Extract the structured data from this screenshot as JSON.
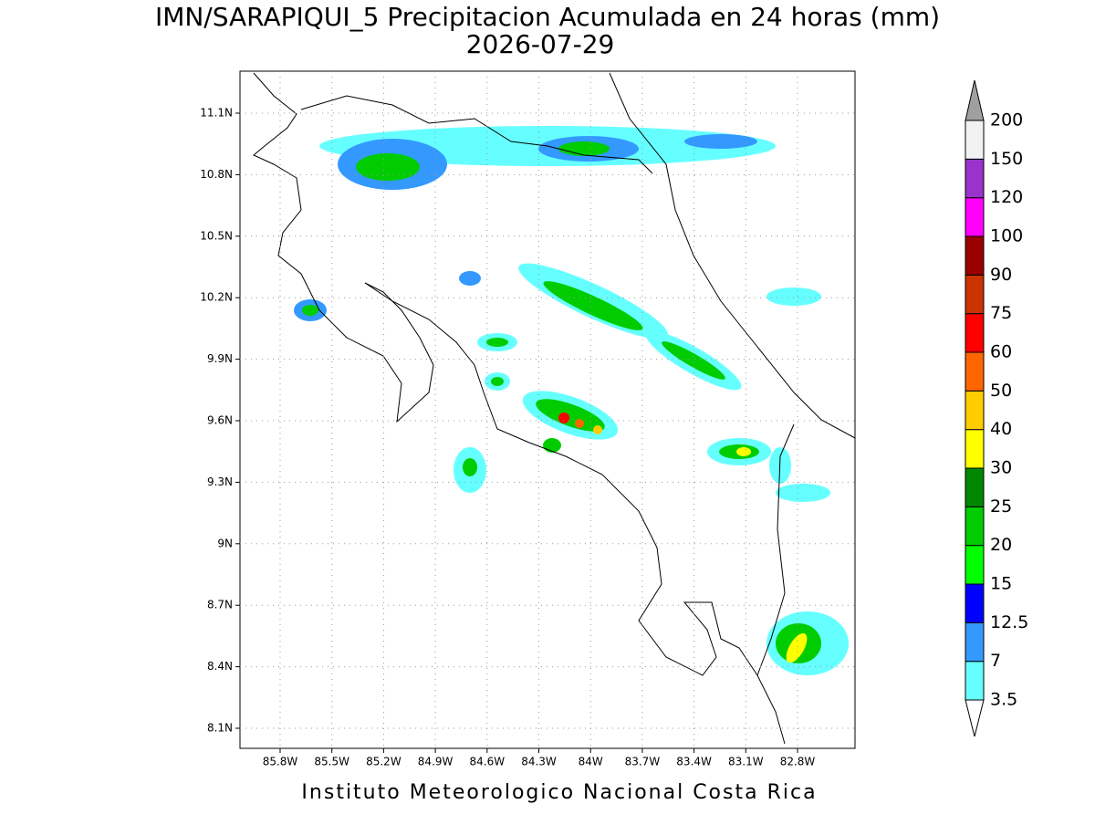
{
  "title": "IMN/SARAPIQUI_5 Precipitacion Acumulada en 24 horas (mm)",
  "subtitle": "2026-07-29",
  "footer": "Instituto Meteorologico Nacional Costa Rica",
  "lon_ticks": [
    {
      "value": -85.8,
      "label": "85.8W"
    },
    {
      "value": -85.5,
      "label": "85.5W"
    },
    {
      "value": -85.2,
      "label": "85.2W"
    },
    {
      "value": -84.9,
      "label": "84.9W"
    },
    {
      "value": -84.6,
      "label": "84.6W"
    },
    {
      "value": -84.3,
      "label": "84.3W"
    },
    {
      "value": -84,
      "label": "84W"
    },
    {
      "value": -83.7,
      "label": "83.7W"
    },
    {
      "value": -83.4,
      "label": "83.4W"
    },
    {
      "value": -83.1,
      "label": "83.1W"
    },
    {
      "value": -82.8,
      "label": "82.8W"
    }
  ],
  "lat_ticks": [
    {
      "value": 11.1,
      "label": "11.1N"
    },
    {
      "value": 10.8,
      "label": "10.8N"
    },
    {
      "value": 10.5,
      "label": "10.5N"
    },
    {
      "value": 10.2,
      "label": "10.2N"
    },
    {
      "value": 9.9,
      "label": "9.9N"
    },
    {
      "value": 9.6,
      "label": "9.6N"
    },
    {
      "value": 9.3,
      "label": "9.3N"
    },
    {
      "value": 9,
      "label": "9N"
    },
    {
      "value": 8.7,
      "label": "8.7N"
    },
    {
      "value": 8.4,
      "label": "8.4N"
    },
    {
      "value": 8.1,
      "label": "8.1N"
    }
  ],
  "colorbar": {
    "levels": [
      3.5,
      7,
      12.5,
      15,
      20,
      25,
      30,
      40,
      50,
      60,
      75,
      90,
      100,
      120,
      150,
      200
    ],
    "colors": [
      "#ffffff",
      "#66ffff",
      "#3399ff",
      "#0000ff",
      "#00ff00",
      "#00cc00",
      "#008800",
      "#ffff00",
      "#ffcc00",
      "#ff6600",
      "#ff0000",
      "#cc3300",
      "#990000",
      "#ff00ff",
      "#9933cc",
      "#f2f2f2",
      "#a0a0a0"
    ]
  }
}
